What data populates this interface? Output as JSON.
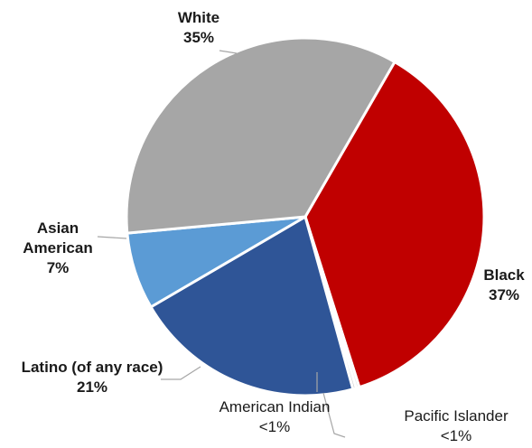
{
  "chart_data": {
    "type": "pie",
    "title": "",
    "slices": [
      {
        "name": "Black",
        "value": 37,
        "label": "37%",
        "color": "#C00000"
      },
      {
        "name": "Pacific Islander",
        "value": 0.3,
        "label": "<1%",
        "color": "#E6E6E6"
      },
      {
        "name": "American Indian",
        "value": 0.3,
        "label": "<1%",
        "color": "#C8C8C8"
      },
      {
        "name": "Latino (of any race)",
        "value": 21,
        "label": "21%",
        "color": "#2F5597"
      },
      {
        "name": "Asian American",
        "value": 7,
        "label": "7%",
        "color": "#5B9BD5"
      },
      {
        "name": "White",
        "value": 35,
        "label": "35%",
        "color": "#A6A6A6"
      }
    ],
    "legend": "none"
  },
  "labels": {
    "white": {
      "name": "White",
      "pct": "35%"
    },
    "black": {
      "name": "Black",
      "pct": "37%"
    },
    "asian": {
      "line1": "Asian",
      "line2": "American",
      "pct": "7%"
    },
    "latino": {
      "name": "Latino (of any race)",
      "pct": "21%"
    },
    "american_indian": {
      "name": "American Indian",
      "pct": "<1%"
    },
    "pacific_islander": {
      "name": "Pacific Islander",
      "pct": "<1%"
    }
  }
}
